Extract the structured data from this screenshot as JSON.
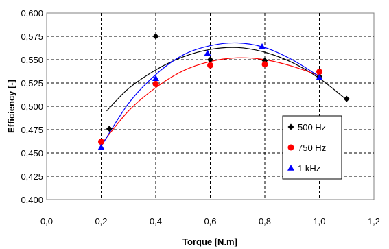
{
  "chart_data": {
    "type": "scatter",
    "title": "",
    "xlabel": "Torque [N.m]",
    "ylabel": "Efficiency [-]",
    "xlim": [
      0.0,
      1.2
    ],
    "ylim": [
      0.4,
      0.6
    ],
    "x_ticks": [
      "0,0",
      "0,2",
      "0,4",
      "0,6",
      "0,8",
      "1,0",
      "1,2"
    ],
    "y_ticks": [
      "0,400",
      "0,425",
      "0,450",
      "0,475",
      "0,500",
      "0,525",
      "0,550",
      "0,575",
      "0,600"
    ],
    "grid": true,
    "legend_position": "right-center",
    "series": [
      {
        "name": "500 Hz",
        "marker": "diamond",
        "color": "#000000",
        "points": [
          [
            0.23,
            0.476
          ],
          [
            0.4,
            0.575
          ],
          [
            0.6,
            0.55
          ],
          [
            0.8,
            0.549
          ],
          [
            1.0,
            0.532
          ],
          [
            1.1,
            0.508
          ]
        ],
        "trend": [
          [
            0.22,
            0.495
          ],
          [
            0.3,
            0.519
          ],
          [
            0.4,
            0.539
          ],
          [
            0.5,
            0.553
          ],
          [
            0.6,
            0.561
          ],
          [
            0.7,
            0.563
          ],
          [
            0.8,
            0.558
          ],
          [
            0.9,
            0.547
          ],
          [
            1.0,
            0.53
          ],
          [
            1.1,
            0.507
          ]
        ]
      },
      {
        "name": "750 Hz",
        "marker": "circle",
        "color": "#ff0000",
        "points": [
          [
            0.2,
            0.462
          ],
          [
            0.4,
            0.524
          ],
          [
            0.6,
            0.544
          ],
          [
            0.8,
            0.545
          ],
          [
            1.0,
            0.537
          ]
        ],
        "trend": [
          [
            0.2,
            0.459
          ],
          [
            0.3,
            0.495
          ],
          [
            0.4,
            0.52
          ],
          [
            0.5,
            0.538
          ],
          [
            0.6,
            0.548
          ],
          [
            0.7,
            0.552
          ],
          [
            0.8,
            0.55
          ],
          [
            0.9,
            0.543
          ],
          [
            1.0,
            0.533
          ]
        ]
      },
      {
        "name": "1 kHz",
        "marker": "triangle",
        "color": "#0000ff",
        "points": [
          [
            0.2,
            0.456
          ],
          [
            0.4,
            0.53
          ],
          [
            0.59,
            0.557
          ],
          [
            0.79,
            0.564
          ],
          [
            1.0,
            0.531
          ]
        ],
        "trend": [
          [
            0.2,
            0.457
          ],
          [
            0.3,
            0.503
          ],
          [
            0.4,
            0.534
          ],
          [
            0.5,
            0.555
          ],
          [
            0.6,
            0.565
          ],
          [
            0.7,
            0.568
          ],
          [
            0.8,
            0.563
          ],
          [
            0.9,
            0.55
          ],
          [
            1.0,
            0.532
          ]
        ]
      }
    ]
  }
}
